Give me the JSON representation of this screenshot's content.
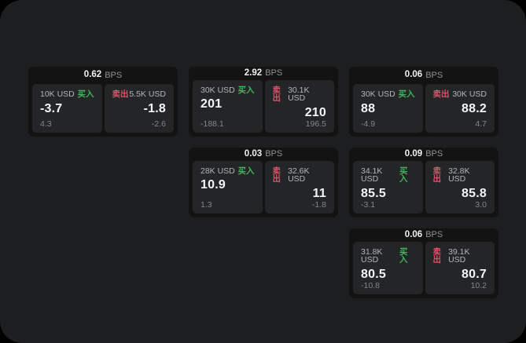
{
  "labels": {
    "buy": "买入",
    "sell": "卖出",
    "bps_unit": "BPS"
  },
  "colors": {
    "buy_green": "#42b35f",
    "sell_red": "#d8566b",
    "panel_bg": "#1d1e1f",
    "card_bg": "#131314",
    "tile_bg": "#242526"
  },
  "cards": [
    {
      "row": 1,
      "col": 1,
      "bps": "0.62",
      "buy": {
        "size": "10K USD",
        "value": "-3.7",
        "sub": "4.3"
      },
      "sell": {
        "size": "5.5K USD",
        "value": "-1.8",
        "sub": "-2.6"
      }
    },
    {
      "row": 1,
      "col": 2,
      "bps": "2.92",
      "buy": {
        "size": "30K USD",
        "value": "201",
        "sub": "-188.1"
      },
      "sell": {
        "size": "30.1K USD",
        "value": "210",
        "sub": "196.5"
      }
    },
    {
      "row": 1,
      "col": 3,
      "bps": "0.06",
      "buy": {
        "size": "30K USD",
        "value": "88",
        "sub": "-4.9"
      },
      "sell": {
        "size": "30K USD",
        "value": "88.2",
        "sub": "4.7"
      }
    },
    {
      "row": 2,
      "col": 2,
      "bps": "0.03",
      "buy": {
        "size": "28K USD",
        "value": "10.9",
        "sub": "1.3"
      },
      "sell": {
        "size": "32.6K USD",
        "value": "11",
        "sub": "-1.8"
      }
    },
    {
      "row": 2,
      "col": 3,
      "bps": "0.09",
      "buy": {
        "size": "34.1K USD",
        "value": "85.5",
        "sub": "-3.1"
      },
      "sell": {
        "size": "32.8K USD",
        "value": "85.8",
        "sub": "3.0"
      }
    },
    {
      "row": 3,
      "col": 3,
      "bps": "0.06",
      "buy": {
        "size": "31.8K USD",
        "value": "80.5",
        "sub": "-10.8"
      },
      "sell": {
        "size": "39.1K USD",
        "value": "80.7",
        "sub": "10.2"
      }
    }
  ]
}
